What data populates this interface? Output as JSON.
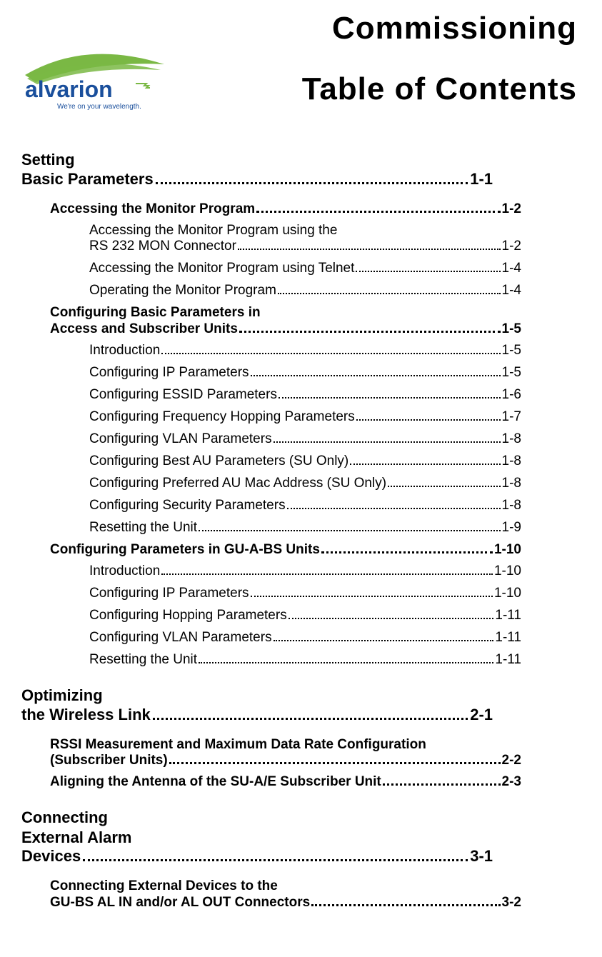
{
  "header": {
    "title1": "Commissioning",
    "title2": "Table of Contents",
    "logo": {
      "brand": "alvarion",
      "tagline": "We're on your wavelength.",
      "swoosh_color": "#7ab844",
      "text_color": "#1a4f9c",
      "tagline_color": "#1a4f9c"
    }
  },
  "toc": [
    {
      "title": "Setting\nBasic Parameters",
      "page": "1-1",
      "sections": [
        {
          "title": "Accessing the Monitor Program",
          "page": "1-2",
          "subsections": [
            {
              "title": "Accessing the Monitor Program using the\nRS 232 MON Connector",
              "page": "1-2"
            },
            {
              "title": "Accessing the Monitor Program using Telnet",
              "page": "1-4"
            },
            {
              "title": "Operating the Monitor Program",
              "page": "1-4"
            }
          ]
        },
        {
          "title": "Configuring Basic Parameters in\nAccess and Subscriber Units",
          "page": "1-5",
          "subsections": [
            {
              "title": "Introduction",
              "page": "1-5"
            },
            {
              "title": "Configuring IP Parameters",
              "page": "1-5"
            },
            {
              "title": "Configuring ESSID Parameters",
              "page": "1-6"
            },
            {
              "title": "Configuring Frequency Hopping Parameters",
              "page": "1-7"
            },
            {
              "title": "Configuring VLAN Parameters",
              "page": "1-8"
            },
            {
              "title": "Configuring Best AU Parameters (SU Only)",
              "page": "1-8"
            },
            {
              "title": "Configuring Preferred AU Mac Address (SU Only)",
              "page": "1-8"
            },
            {
              "title": "Configuring Security Parameters",
              "page": "1-8"
            },
            {
              "title": "Resetting the Unit",
              "page": "1-9"
            }
          ]
        },
        {
          "title": "Configuring Parameters in GU-A-BS Units",
          "page": "1-10",
          "subsections": [
            {
              "title": "Introduction",
              "page": "1-10"
            },
            {
              "title": "Configuring IP Parameters",
              "page": "1-10"
            },
            {
              "title": "Configuring Hopping Parameters",
              "page": "1-11"
            },
            {
              "title": "Configuring VLAN Parameters",
              "page": "1-11"
            },
            {
              "title": "Resetting the Unit",
              "page": "1-11"
            }
          ]
        }
      ]
    },
    {
      "title": "Optimizing\nthe Wireless Link",
      "page": "2-1",
      "sections": [
        {
          "title": "RSSI Measurement and Maximum Data Rate Configuration\n(Subscriber Units)",
          "page": "2-2",
          "subsections": []
        },
        {
          "title": "Aligning the Antenna of the SU-A/E Subscriber Unit",
          "page": "2-3",
          "subsections": []
        }
      ]
    },
    {
      "title": "Connecting\nExternal Alarm\nDevices",
      "page": "3-1",
      "sections": [
        {
          "title": "Connecting External Devices to the\nGU-BS AL IN and/or AL OUT Connectors",
          "page": "3-2",
          "subsections": []
        }
      ]
    }
  ]
}
